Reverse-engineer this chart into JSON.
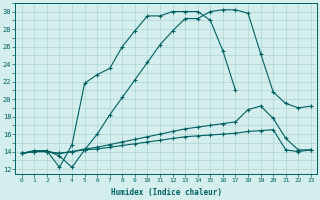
{
  "bg_color": "#d4eeee",
  "grid_color": "#aed4d4",
  "line_color": "#006060",
  "xlabel": "Humidex (Indice chaleur)",
  "xlim": [
    -0.5,
    23.5
  ],
  "ylim": [
    11.5,
    31.0
  ],
  "xtick_labels": [
    "0",
    "1",
    "2",
    "3",
    "4",
    "5",
    "6",
    "7",
    "8",
    "9",
    "10",
    "11",
    "12",
    "13",
    "14",
    "15",
    "16",
    "17",
    "18",
    "19",
    "20",
    "21",
    "22",
    "23"
  ],
  "ytick_vals": [
    12,
    14,
    16,
    18,
    20,
    22,
    24,
    26,
    28,
    30
  ],
  "curve1_x": [
    0,
    1,
    2,
    3,
    4,
    5,
    6,
    7,
    8,
    9,
    10,
    11,
    12,
    13,
    14,
    15,
    16,
    17,
    18,
    19,
    20,
    21,
    22,
    23
  ],
  "curve1_y": [
    13.8,
    14.1,
    14.1,
    13.5,
    12.2,
    14.2,
    16.0,
    18.2,
    20.2,
    22.2,
    24.2,
    26.2,
    27.8,
    29.2,
    29.2,
    30.0,
    30.2,
    30.2,
    29.8,
    25.2,
    20.8,
    19.5,
    19.0,
    19.2
  ],
  "curve2_x": [
    0,
    1,
    2,
    3,
    4,
    5,
    6,
    7,
    8,
    9,
    10,
    11,
    12,
    13,
    14,
    15,
    16,
    17
  ],
  "curve2_y": [
    13.8,
    14.1,
    14.1,
    12.2,
    14.8,
    21.8,
    22.8,
    23.5,
    26.0,
    27.8,
    29.5,
    29.5,
    30.0,
    30.0,
    30.0,
    29.0,
    25.5,
    21.0
  ],
  "curve3_x": [
    0,
    1,
    2,
    3,
    4,
    5,
    6,
    7,
    8,
    9,
    10,
    11,
    12,
    13,
    14,
    15,
    16,
    17,
    18,
    19,
    20,
    21,
    22,
    23
  ],
  "curve3_y": [
    13.8,
    14.0,
    14.0,
    13.8,
    14.0,
    14.3,
    14.5,
    14.8,
    15.1,
    15.4,
    15.7,
    16.0,
    16.3,
    16.6,
    16.8,
    17.0,
    17.2,
    17.4,
    18.8,
    19.2,
    17.8,
    15.5,
    14.2,
    14.2
  ],
  "curve4_x": [
    0,
    1,
    2,
    3,
    4,
    5,
    6,
    7,
    8,
    9,
    10,
    11,
    12,
    13,
    14,
    15,
    16,
    17,
    18,
    19,
    20,
    21,
    22,
    23
  ],
  "curve4_y": [
    13.8,
    14.0,
    14.0,
    13.8,
    14.0,
    14.2,
    14.3,
    14.5,
    14.7,
    14.9,
    15.1,
    15.3,
    15.5,
    15.7,
    15.8,
    15.9,
    16.0,
    16.1,
    16.3,
    16.4,
    16.5,
    14.2,
    14.0,
    14.2
  ]
}
